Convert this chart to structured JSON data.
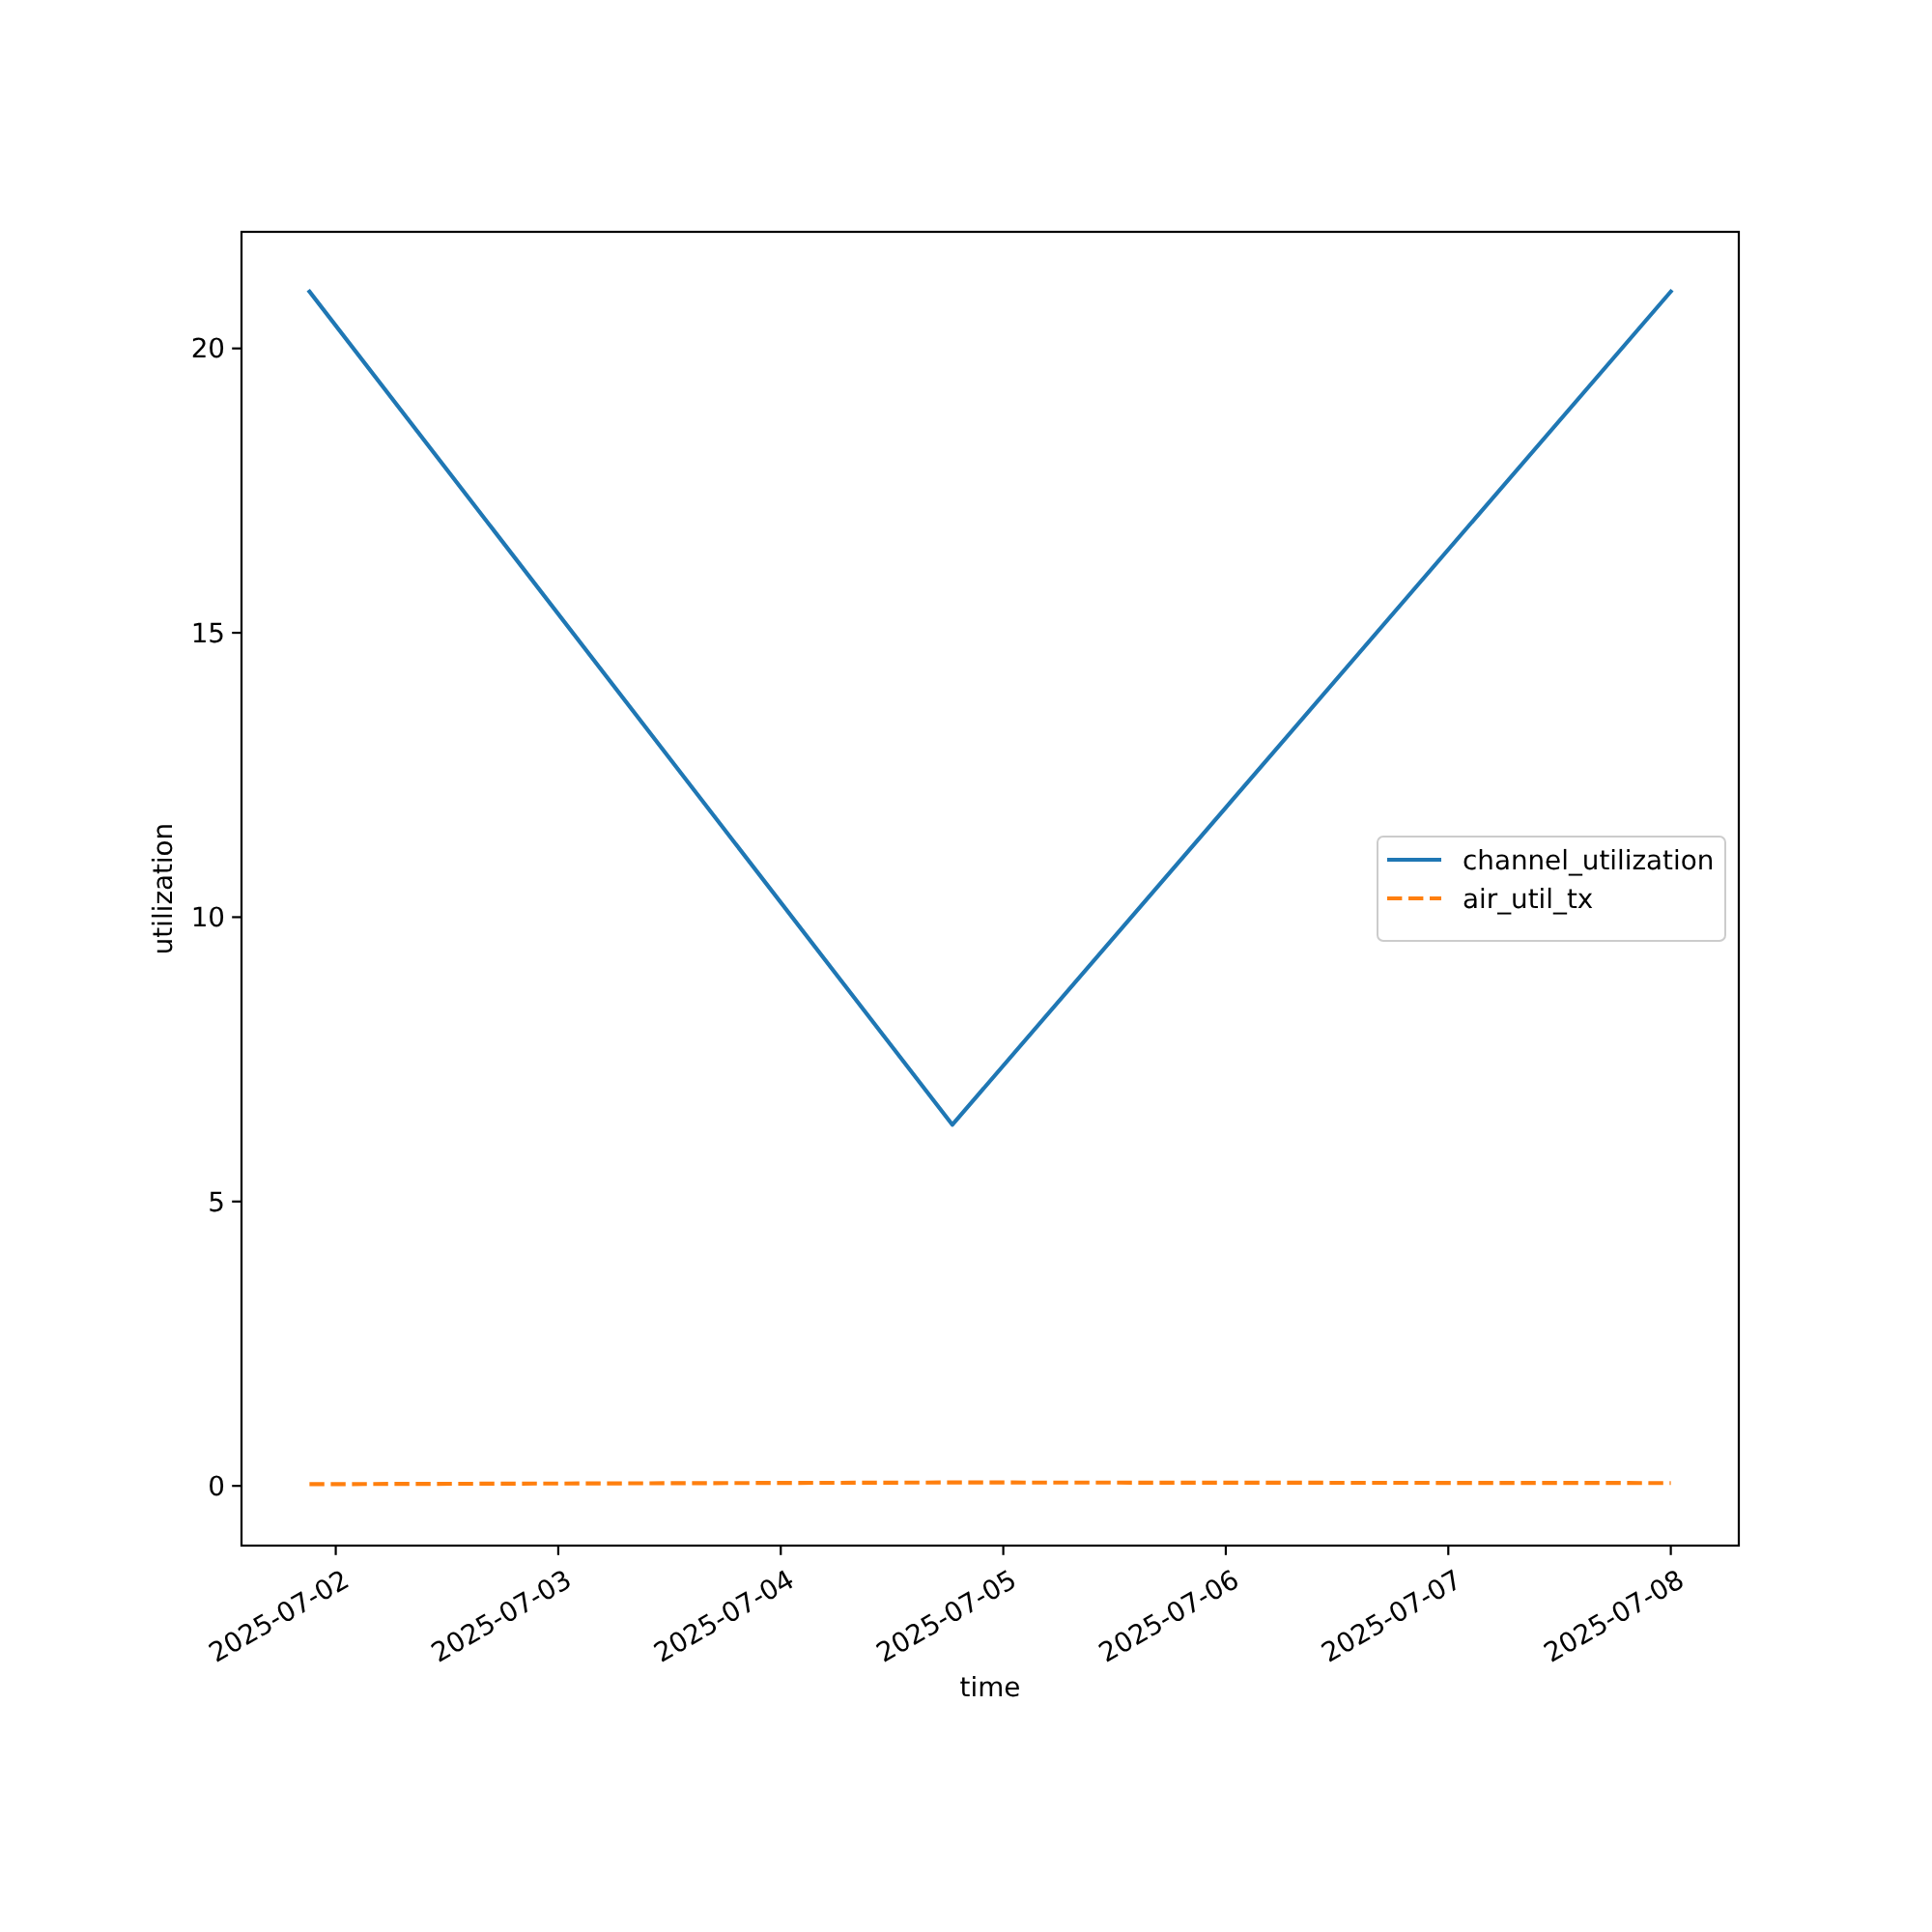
{
  "chart_data": {
    "type": "line",
    "xlabel": "time",
    "ylabel": "utilization",
    "x": [
      "2025-07-01T21:10",
      "2025-07-04T18:30",
      "2025-07-08T00:00"
    ],
    "series": [
      {
        "name": "channel_utilization",
        "color": "#1f77b4",
        "values": [
          21.0,
          6.35,
          21.0
        ],
        "line_style": "solid"
      },
      {
        "name": "air_util_tx",
        "color": "#ff7f0e",
        "values": [
          0.03,
          0.06,
          0.05
        ],
        "line_style": "dashed"
      }
    ],
    "xlim": [
      "2025-07-01T13:50",
      "2025-07-08T07:20"
    ],
    "xticks": [
      "2025-07-02",
      "2025-07-03",
      "2025-07-04",
      "2025-07-05",
      "2025-07-06",
      "2025-07-07",
      "2025-07-08"
    ],
    "ylim": [
      -1.05,
      22.05
    ],
    "yticks": [
      0,
      5,
      10,
      15,
      20
    ],
    "legend": "right"
  }
}
